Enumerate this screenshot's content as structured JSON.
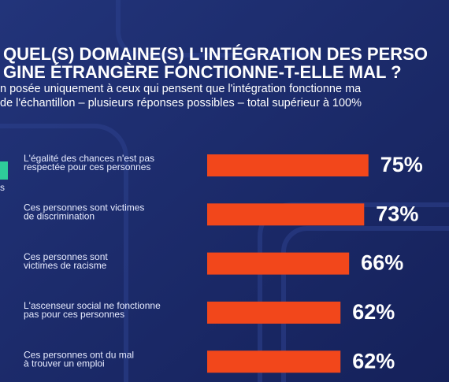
{
  "chart_data": {
    "type": "barh",
    "title": [
      "QUEL(S) DOMAINE(S) L'INTÉGRATION DES PERSO",
      "GINE ÉTRANGÈRE FONCTIONNE-T-ELLE MAL ?"
    ],
    "subtitle": [
      "n posée uniquement à ceux qui pensent que l'intégration fonctionne ma",
      "de l'échantillon – plusieurs réponses possibles – total supérieur à 100%"
    ],
    "side_label": "s",
    "categories": [
      [
        "L'égalité des chances n'est pas",
        "respectée pour ces personnes"
      ],
      [
        "Ces personnes sont victimes",
        "de discrimination"
      ],
      [
        "Ces personnes sont",
        "victimes de racisme"
      ],
      [
        "L'ascenseur social ne fonctionne",
        "pas pour ces personnes"
      ],
      [
        "Ces personnes ont du mal",
        "à trouver un emploi"
      ]
    ],
    "values": [
      75,
      73,
      66,
      62,
      62
    ],
    "value_labels": [
      "75%",
      "73%",
      "66%",
      "62%",
      "62%"
    ],
    "color": "#f2471b"
  }
}
